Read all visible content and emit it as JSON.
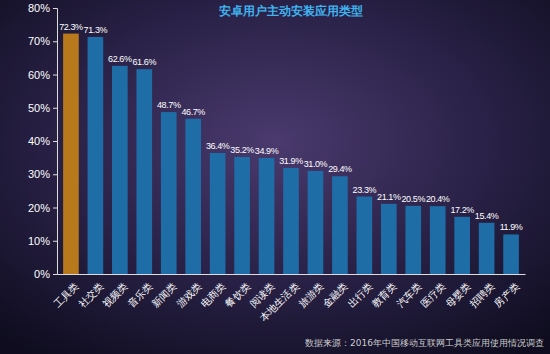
{
  "chart_data": {
    "type": "bar",
    "title": "安卓用户主动安装应用类型",
    "categories": [
      "工具类",
      "社交类",
      "视频类",
      "音乐类",
      "新闻类",
      "游戏类",
      "电商类",
      "餐饮类",
      "阅读类",
      "本地生活类",
      "旅游类",
      "金融类",
      "出行类",
      "教育类",
      "汽车类",
      "医疗类",
      "母婴类",
      "招聘类",
      "房产类"
    ],
    "values": [
      72.3,
      71.3,
      62.6,
      61.6,
      48.7,
      46.7,
      36.4,
      35.2,
      34.9,
      31.9,
      31.0,
      29.4,
      23.3,
      21.1,
      20.5,
      20.4,
      17.2,
      15.4,
      11.9
    ],
    "value_labels": [
      "72.3%",
      "71.3%",
      "62.6%",
      "61.6%",
      "48.7%",
      "46.7%",
      "36.4%",
      "35.2%",
      "34.9%",
      "31.9%",
      "31.0%",
      "29.4%",
      "23.3%",
      "21.1%",
      "20.5%",
      "20.4%",
      "17.2%",
      "15.4%",
      "11.9%"
    ],
    "colors": [
      "#b8791c",
      "#1f6da6",
      "#1f6da6",
      "#1f6da6",
      "#1f6da6",
      "#1f6da6",
      "#1f6da6",
      "#1f6da6",
      "#1f6da6",
      "#1f6da6",
      "#1f6da6",
      "#1f6da6",
      "#1f6da6",
      "#1f6da6",
      "#1f6da6",
      "#1f6da6",
      "#1f6da6",
      "#1f6da6",
      "#1f6da6"
    ],
    "data_labels": true,
    "grid": false,
    "ylim": [
      0,
      80
    ],
    "yticks": [
      {
        "value": 0,
        "label": "0%"
      },
      {
        "value": 10,
        "label": "10%"
      },
      {
        "value": 20,
        "label": "20%"
      },
      {
        "value": 30,
        "label": "30%"
      },
      {
        "value": 40,
        "label": "40%"
      },
      {
        "value": 50,
        "label": "50%"
      },
      {
        "value": 60,
        "label": "60%"
      },
      {
        "value": 70,
        "label": "70%"
      },
      {
        "value": 80,
        "label": "80%"
      }
    ],
    "annotations": [
      "数据来源：2016年中国移动互联网工具类应用使用情况调查"
    ]
  }
}
